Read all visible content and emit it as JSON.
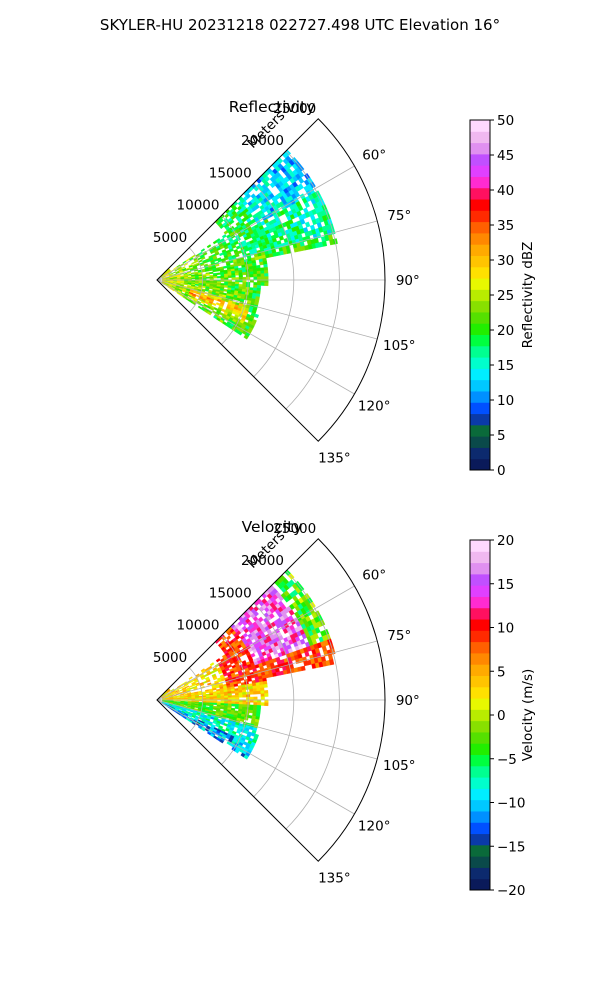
{
  "figure_title": "SKYLER-HU  20231218  022727.498 UTC Elevation 16°",
  "chart_data": [
    {
      "type": "heatmap",
      "projection": "polar-sector",
      "title": "Reflectivity",
      "radial_label": "Meters",
      "radial_ticks": [
        5000,
        10000,
        15000,
        20000,
        25000
      ],
      "radial_tick_labels": [
        "5000",
        "10000",
        "15000",
        "20000",
        "25000"
      ],
      "rmax": 25000,
      "theta_range_deg": [
        45,
        135
      ],
      "theta_ticks": [
        60,
        75,
        90,
        105,
        120,
        135
      ],
      "theta_tick_labels": [
        "60°",
        "75°",
        "90°",
        "105°",
        "120°",
        "135°"
      ],
      "grid": true,
      "field_extent": {
        "theta_deg": [
          45,
          122
        ],
        "r_max_m": 20000
      },
      "colorbar": {
        "label": "Reflectivity dBZ",
        "range": [
          0,
          50
        ],
        "ticks": [
          0,
          5,
          10,
          15,
          20,
          25,
          30,
          35,
          40,
          45,
          50
        ],
        "tick_labels": [
          "0",
          "5",
          "10",
          "15",
          "20",
          "25",
          "30",
          "35",
          "40",
          "45",
          "50"
        ],
        "colors": [
          "#0a1a5a",
          "#0c2a6e",
          "#0a4a4a",
          "#0a6a3a",
          "#0a3aa8",
          "#0050ff",
          "#0090ff",
          "#00c8ff",
          "#00eeff",
          "#00ffcc",
          "#00ff90",
          "#00ff40",
          "#22ee00",
          "#55e000",
          "#88e000",
          "#b8ec00",
          "#e8f800",
          "#ffe000",
          "#ffc400",
          "#ffaa00",
          "#ff8800",
          "#ff6000",
          "#ff2a00",
          "#ff0000",
          "#ff1060",
          "#ff2bd0",
          "#e040ff",
          "#c050ff",
          "#e090f0",
          "#f0b8f0",
          "#ffd8ff"
        ]
      }
    },
    {
      "type": "heatmap",
      "projection": "polar-sector",
      "title": "Velocity",
      "radial_label": "Meters",
      "radial_ticks": [
        5000,
        10000,
        15000,
        20000,
        25000
      ],
      "radial_tick_labels": [
        "5000",
        "10000",
        "15000",
        "20000",
        "25000"
      ],
      "rmax": 25000,
      "theta_range_deg": [
        45,
        135
      ],
      "theta_ticks": [
        60,
        75,
        90,
        105,
        120,
        135
      ],
      "theta_tick_labels": [
        "60°",
        "75°",
        "90°",
        "105°",
        "120°",
        "135°"
      ],
      "grid": true,
      "field_extent": {
        "theta_deg": [
          45,
          122
        ],
        "r_max_m": 20000
      },
      "colorbar": {
        "label": "Velocity (m/s)",
        "range": [
          -20,
          20
        ],
        "ticks": [
          -20,
          -15,
          -10,
          -5,
          0,
          5,
          10,
          15,
          20
        ],
        "tick_labels": [
          "−20",
          "−15",
          "−10",
          "−5",
          "0",
          "5",
          "10",
          "15",
          "20"
        ],
        "colors": [
          "#0a1a5a",
          "#0c2a6e",
          "#0a4a4a",
          "#0a6a3a",
          "#0a3aa8",
          "#0050ff",
          "#0090ff",
          "#00c8ff",
          "#00eeff",
          "#00ffcc",
          "#00ff90",
          "#00ff40",
          "#22ee00",
          "#55e000",
          "#88e000",
          "#b8ec00",
          "#e8f800",
          "#ffe000",
          "#ffc400",
          "#ffaa00",
          "#ff8800",
          "#ff6000",
          "#ff2a00",
          "#ff0000",
          "#ff1060",
          "#ff2bd0",
          "#e040ff",
          "#c050ff",
          "#e090f0",
          "#f0b8f0",
          "#ffd8ff"
        ]
      }
    }
  ]
}
